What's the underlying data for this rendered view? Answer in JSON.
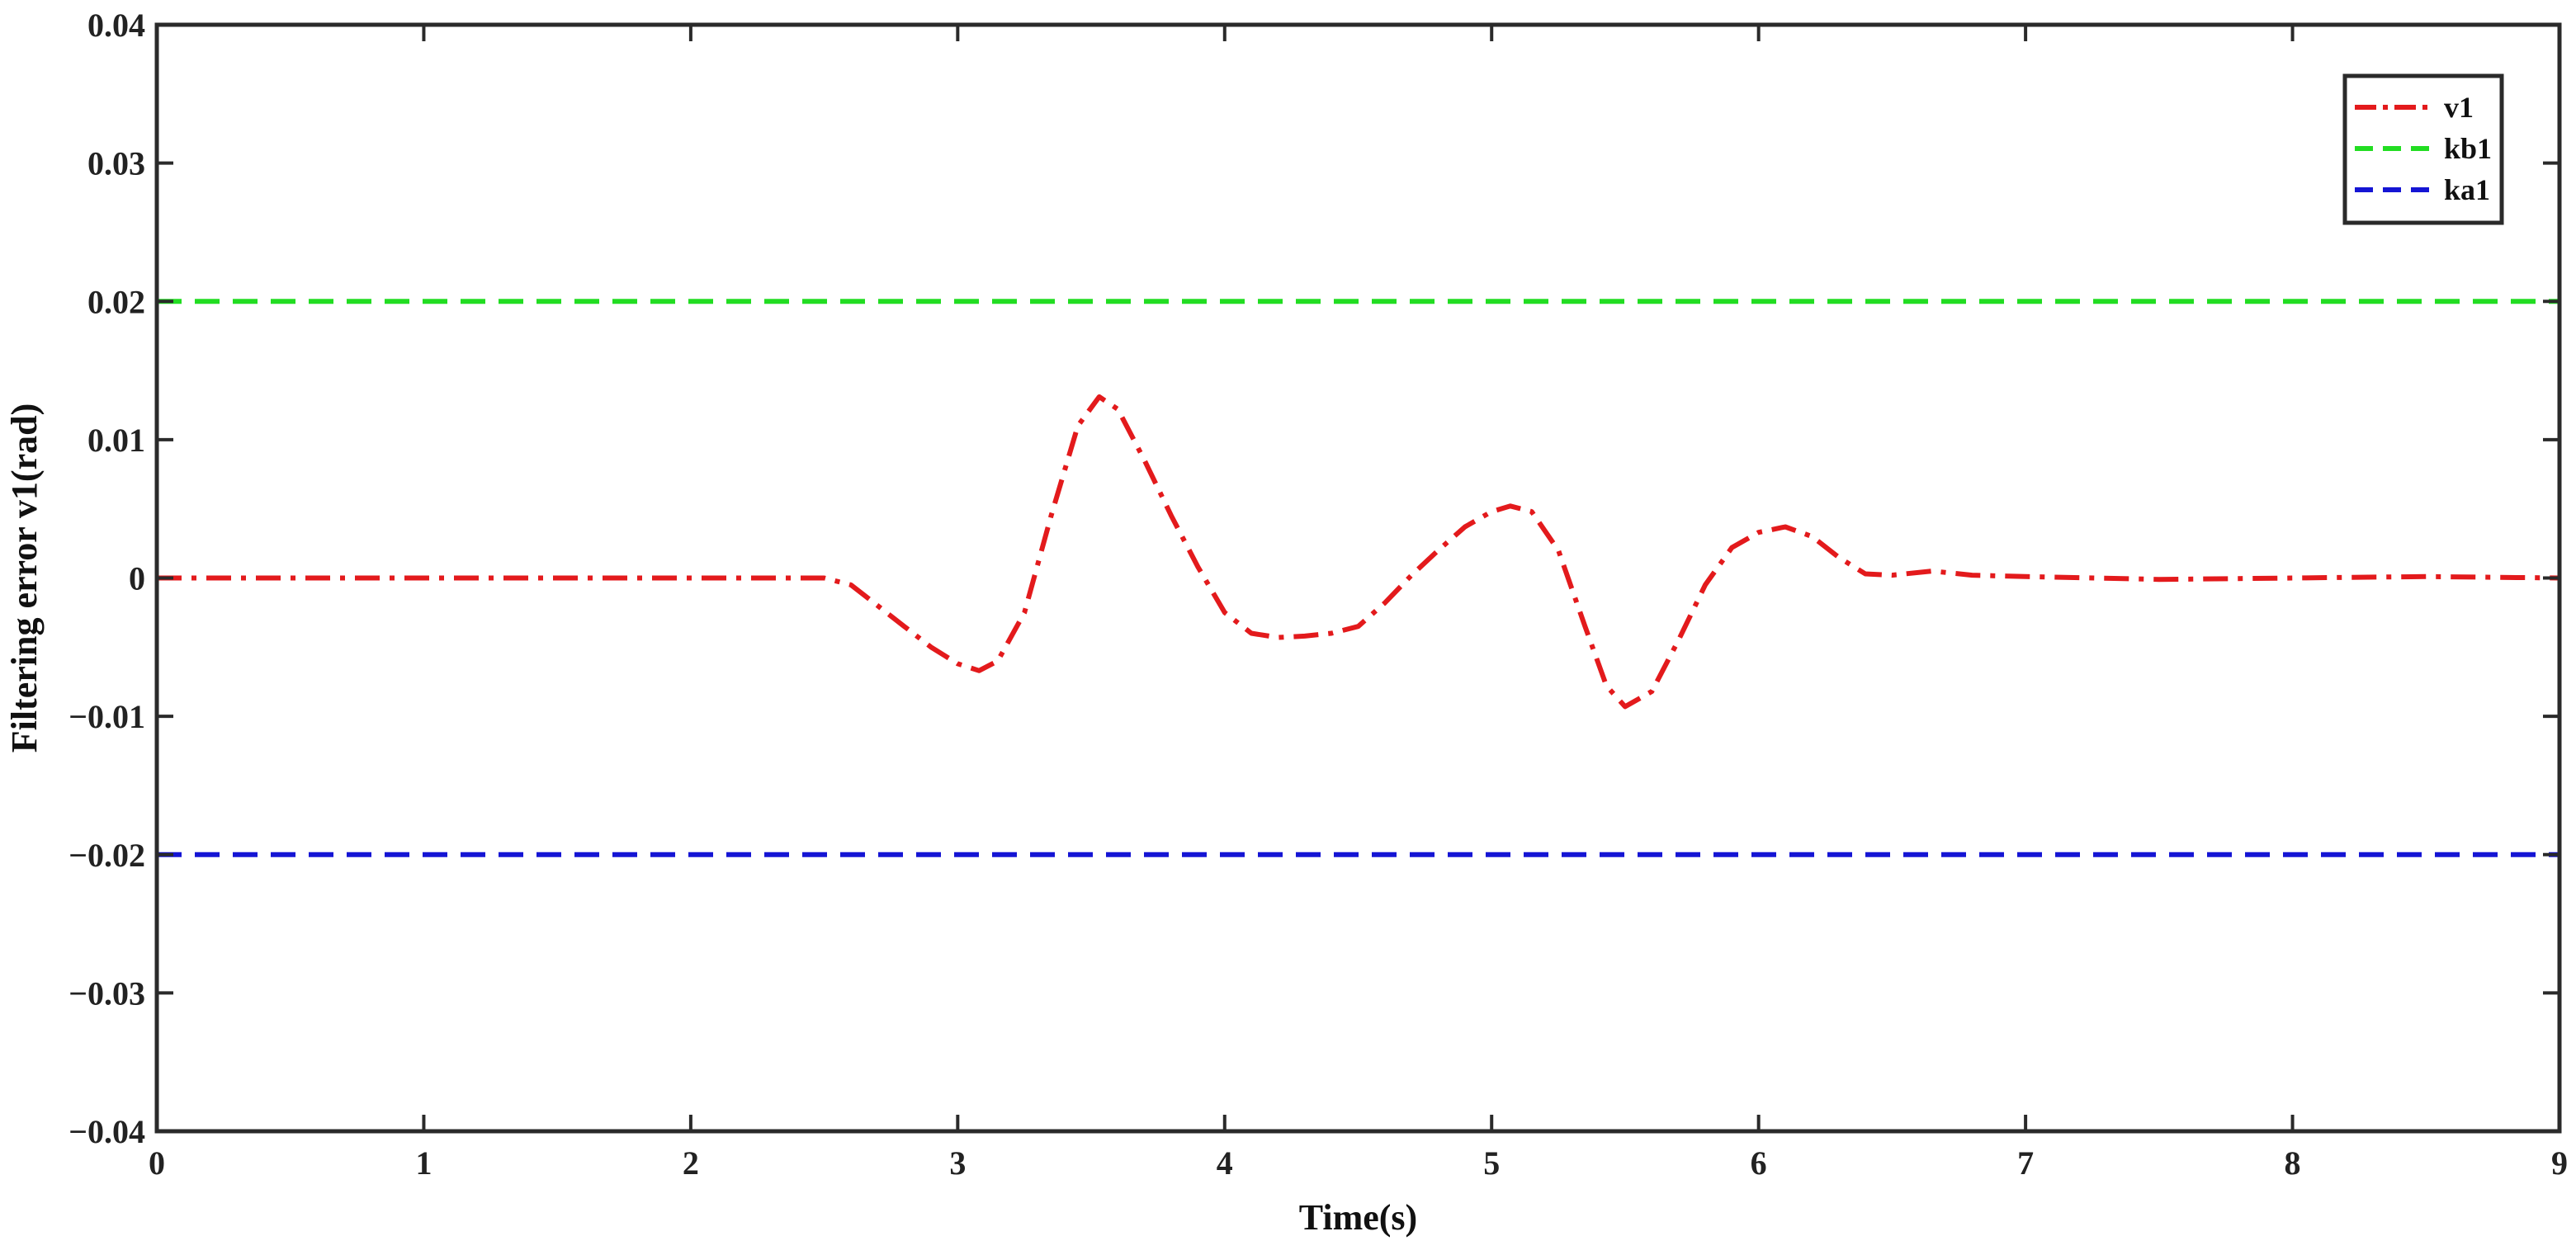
{
  "chart_data": {
    "type": "line",
    "title": "",
    "xlabel": "Time(s)",
    "ylabel": "Filtering error v1(rad)",
    "xlim": [
      0,
      9
    ],
    "ylim": [
      -0.04,
      0.04
    ],
    "xticks": [
      0,
      1,
      2,
      3,
      4,
      5,
      6,
      7,
      8,
      9
    ],
    "yticks": [
      -0.04,
      -0.03,
      -0.02,
      -0.01,
      0,
      0.01,
      0.02,
      0.03,
      0.04
    ],
    "xtick_labels": [
      "0",
      "1",
      "2",
      "3",
      "4",
      "5",
      "6",
      "7",
      "8",
      "9"
    ],
    "ytick_labels": [
      "−0.04",
      "−0.03",
      "−0.02",
      "−0.01",
      "0",
      "0.01",
      "0.02",
      "0.03",
      "0.04"
    ],
    "grid": false,
    "legend_position": "top-right",
    "series": [
      {
        "name": "v1",
        "color": "#e31a1c",
        "style": "dash-dot",
        "x": [
          0,
          0.5,
          1,
          1.5,
          2,
          2.5,
          2.6,
          2.7,
          2.8,
          2.9,
          3.0,
          3.08,
          3.15,
          3.25,
          3.35,
          3.45,
          3.53,
          3.6,
          3.7,
          3.8,
          3.9,
          4.0,
          4.1,
          4.2,
          4.3,
          4.4,
          4.5,
          4.6,
          4.7,
          4.8,
          4.9,
          5.0,
          5.07,
          5.15,
          5.25,
          5.35,
          5.43,
          5.5,
          5.6,
          5.7,
          5.8,
          5.9,
          6.0,
          6.1,
          6.2,
          6.3,
          6.4,
          6.5,
          6.65,
          6.8,
          7.0,
          7.5,
          8.0,
          8.5,
          9.0
        ],
        "y": [
          0,
          0,
          0,
          0,
          0,
          0,
          -0.0005,
          -0.002,
          -0.0035,
          -0.005,
          -0.0062,
          -0.0067,
          -0.006,
          -0.0025,
          0.0045,
          0.011,
          0.0131,
          0.0122,
          0.0085,
          0.0045,
          0.0008,
          -0.0025,
          -0.004,
          -0.0043,
          -0.0042,
          -0.004,
          -0.0035,
          -0.0018,
          0.0002,
          0.002,
          0.0037,
          0.0048,
          0.0052,
          0.0048,
          0.002,
          -0.0035,
          -0.0078,
          -0.0093,
          -0.0082,
          -0.0045,
          -0.0005,
          0.0022,
          0.0033,
          0.0037,
          0.003,
          0.0015,
          0.0003,
          0.0002,
          0.0005,
          0.0002,
          0.0001,
          -0.0001,
          0,
          0.0001,
          0
        ]
      },
      {
        "name": "kb1",
        "color": "#22dd22",
        "style": "dashed",
        "x": [
          0,
          9
        ],
        "y": [
          0.02,
          0.02
        ]
      },
      {
        "name": "ka1",
        "color": "#1515d4",
        "style": "dashed",
        "x": [
          0,
          9
        ],
        "y": [
          -0.02,
          -0.02
        ]
      }
    ]
  }
}
